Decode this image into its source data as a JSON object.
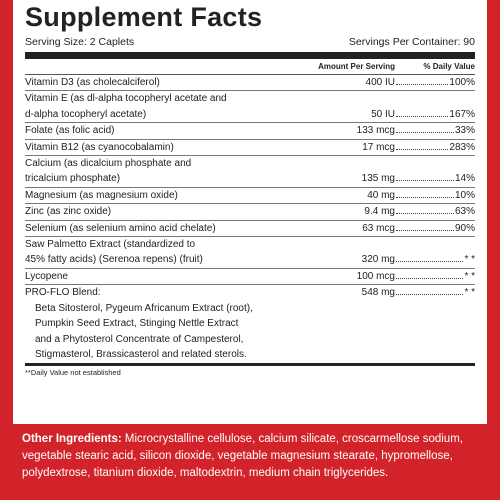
{
  "title": "Supplement Facts",
  "serving_size": "Serving Size: 2 Caplets",
  "servings_per_container": "Servings Per Container: 90",
  "columns": {
    "amount": "Amount Per Serving",
    "dv": "% Daily Value"
  },
  "rows": [
    {
      "name": [
        "Vitamin D3 (as cholecalciferol)"
      ],
      "amount": "400 IU",
      "dv": "100%"
    },
    {
      "name": [
        "Vitamin E (as dl-alpha tocopheryl acetate and",
        "d-alpha tocopheryl acetate)"
      ],
      "amount": "50 IU",
      "dv": "167%"
    },
    {
      "name": [
        "Folate (as folic acid)"
      ],
      "amount": "133 mcg",
      "dv": "33%"
    },
    {
      "name": [
        "Vitamin B12 (as cyanocobalamin)"
      ],
      "amount": "17 mcg",
      "dv": "283%"
    },
    {
      "name": [
        "Calcium (as dicalcium phosphate and",
        "tricalcium phosphate)"
      ],
      "amount": "135 mg",
      "dv": "14%"
    },
    {
      "name": [
        "Magnesium (as magnesium oxide)"
      ],
      "amount": "40 mg",
      "dv": "10%"
    },
    {
      "name": [
        "Zinc (as zinc oxide)"
      ],
      "amount": "9.4 mg",
      "dv": "63%"
    },
    {
      "name": [
        "Selenium (as selenium amino acid chelate)"
      ],
      "amount": "63 mcg",
      "dv": "90%"
    },
    {
      "name": [
        "Saw Palmetto Extract (standardized to",
        "45% fatty acids) (Serenoa repens) (fruit)"
      ],
      "amount": "320 mg",
      "dv": "* *"
    },
    {
      "name": [
        "Lycopene"
      ],
      "amount": "100 mcg",
      "dv": "* *"
    },
    {
      "name": [
        "PRO-FLO Blend:"
      ],
      "amount": "548 mg",
      "dv": "* *",
      "sub": [
        "Beta Sitosterol, Pygeum Africanum Extract (root),",
        "Pumpkin Seed Extract, Stinging Nettle Extract",
        "and a Phytosterol Concentrate of Campesterol,",
        "Stigmasterol, Brassicasterol and related sterols."
      ]
    }
  ],
  "footnote": "**Daily Value not established",
  "other_ingredients": {
    "label": "Other Ingredients:",
    "text": "Microcrystalline cellulose, calcium silicate, croscarmellose sodium, vegetable stearic acid, silicon dioxide, vegetable magnesium stearate, hypromellose, polydextrose, titanium dioxide, maltodextrin, medium chain triglycerides."
  }
}
